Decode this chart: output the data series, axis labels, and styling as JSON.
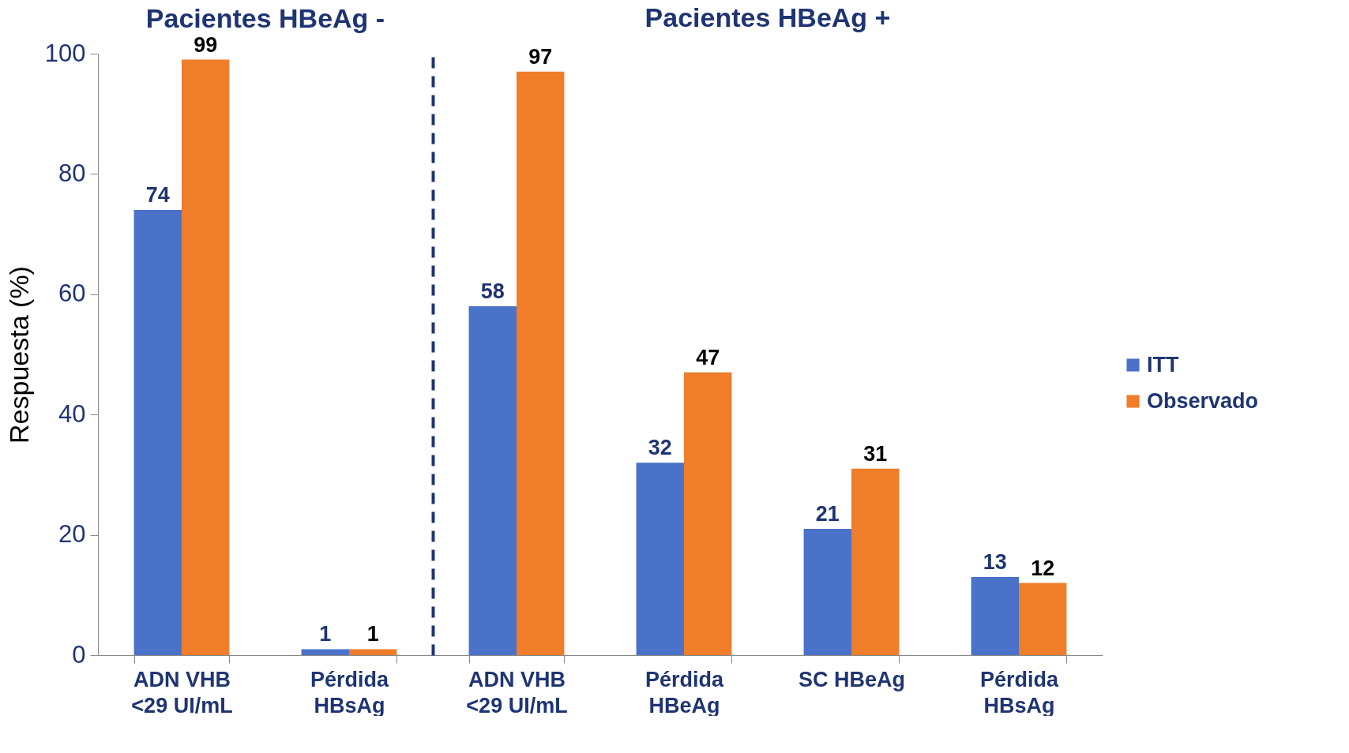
{
  "chart_data": [
    {
      "type": "bar",
      "title": "Pacientes HBeAg -",
      "ylabel": "Respuesta (%)",
      "categories": [
        "ADN VHB\n<29 UI/mL",
        "Pérdida\nHBsAg"
      ],
      "series": [
        {
          "color": "#4a72c8",
          "values": [
            74,
            1
          ]
        },
        {
          "color": "#f07d2a",
          "values": [
            99,
            1
          ]
        }
      ],
      "ylim": [
        0,
        100
      ],
      "yticks": [
        0,
        20,
        40,
        60,
        80,
        100
      ],
      "data_labels": true
    },
    {
      "type": "bar",
      "title": "Pacientes HBeAg +",
      "categories": [
        "ADN VHB\n<29 UI/mL",
        "Pérdida\nHBeAg",
        "SC HBeAg",
        "Pérdida\nHBsAg"
      ],
      "series": [
        {
          "name": "ITT",
          "color": "#4a72c8",
          "values": [
            58,
            32,
            21,
            13
          ]
        },
        {
          "name": "Observado",
          "color": "#f07d2a",
          "values": [
            97,
            47,
            31,
            12
          ]
        }
      ],
      "ylim": [
        0,
        100
      ],
      "yticks": [
        0,
        20,
        40,
        60,
        80,
        100
      ],
      "tick_labels": "x",
      "data_labels": true,
      "legend": "right"
    }
  ]
}
